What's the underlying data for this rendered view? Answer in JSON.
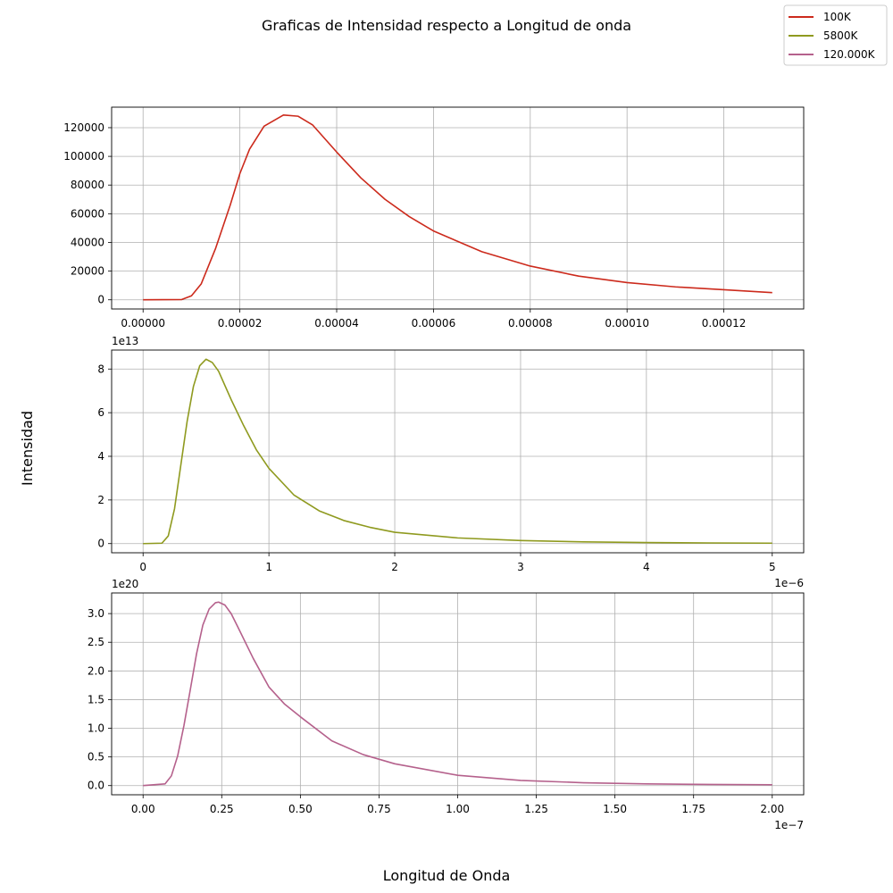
{
  "figure": {
    "title": "Graficas de Intensidad respecto a Longitud de onda",
    "xlabel": "Longitud de Onda",
    "ylabel": "Intensidad"
  },
  "legend": {
    "placement": "top-right",
    "entries": [
      {
        "label": "100K",
        "color": "#cc2a1c"
      },
      {
        "label": "5800K",
        "color": "#8f9a1f"
      },
      {
        "label": "120.000K",
        "color": "#b5618c"
      }
    ]
  },
  "chart_data": [
    {
      "type": "line",
      "series_name": "100K",
      "color": "#cc2a1c",
      "grid": true,
      "xlim": [
        -6.5e-06,
        0.0001365
      ],
      "ylim": [
        -6400,
        134300
      ],
      "xticks": [
        0,
        2e-05,
        4e-05,
        6e-05,
        8e-05,
        0.0001,
        0.00012
      ],
      "xtick_labels": [
        "0.00000",
        "0.00002",
        "0.00004",
        "0.00006",
        "0.00008",
        "0.00010",
        "0.00012"
      ],
      "yticks": [
        0,
        20000,
        40000,
        60000,
        80000,
        100000,
        120000
      ],
      "ytick_labels": [
        "0",
        "20000",
        "40000",
        "60000",
        "80000",
        "100000",
        "120000"
      ],
      "offset_x": "",
      "offset_y": "",
      "x": [
        0,
        8e-06,
        1e-05,
        1.2e-05,
        1.5e-05,
        1.8e-05,
        2e-05,
        2.2e-05,
        2.5e-05,
        2.9e-05,
        3.2e-05,
        3.5e-05,
        4e-05,
        4.5e-05,
        5e-05,
        5.5e-05,
        6e-05,
        7e-05,
        8e-05,
        9e-05,
        0.0001,
        0.00011,
        0.00012,
        0.00013
      ],
      "y": [
        0,
        200,
        2800,
        11000,
        36000,
        66000,
        88000,
        105000,
        121000,
        128800,
        128000,
        122000,
        103000,
        85000,
        70000,
        58000,
        48000,
        33500,
        23500,
        16500,
        12000,
        9000,
        7000,
        5000
      ]
    },
    {
      "type": "line",
      "series_name": "5800K",
      "color": "#8f9a1f",
      "grid": true,
      "xlim": [
        -2.5e-07,
        5.25e-06
      ],
      "ylim": [
        -4200000000000.0,
        88700000000000.0
      ],
      "xticks": [
        0,
        1e-06,
        2e-06,
        3e-06,
        4e-06,
        5e-06
      ],
      "xtick_labels": [
        "0",
        "1",
        "2",
        "3",
        "4",
        "5"
      ],
      "yticks": [
        0,
        20000000000000.0,
        40000000000000.0,
        60000000000000.0,
        80000000000000.0
      ],
      "ytick_labels": [
        "0",
        "2",
        "4",
        "6",
        "8"
      ],
      "offset_x": "1e−6",
      "offset_y": "1e13",
      "x": [
        0,
        1.5e-07,
        2e-07,
        2.5e-07,
        3e-07,
        3.5e-07,
        4e-07,
        4.5e-07,
        5e-07,
        5.5e-07,
        6e-07,
        7e-07,
        8e-07,
        9e-07,
        1e-06,
        1.2e-06,
        1.4e-06,
        1.6e-06,
        1.8e-06,
        2e-06,
        2.5e-06,
        3e-06,
        3.5e-06,
        4e-06,
        4.5e-06,
        5e-06
      ],
      "y": [
        0,
        200000000000.0,
        3500000000000.0,
        16000000000000.0,
        36000000000000.0,
        56000000000000.0,
        72000000000000.0,
        81500000000000.0,
        84500000000000.0,
        83000000000000.0,
        79000000000000.0,
        66000000000000.0,
        54000000000000.0,
        43000000000000.0,
        34500000000000.0,
        22200000000000.0,
        15000000000000.0,
        10500000000000.0,
        7500000000000.0,
        5200000000000.0,
        2600000000000.0,
        1400000000000.0,
        800000000000.0,
        500000000000.0,
        300000000000.0,
        200000000000.0
      ]
    },
    {
      "type": "line",
      "series_name": "120.000K",
      "color": "#b5618c",
      "grid": true,
      "xlim": [
        -1e-08,
        2.1e-07
      ],
      "ylim": [
        -1.6e+19,
        3.36e+20
      ],
      "xticks": [
        0,
        2.5e-08,
        5e-08,
        7.5e-08,
        1e-07,
        1.25e-07,
        1.5e-07,
        1.75e-07,
        2e-07
      ],
      "xtick_labels": [
        "0.00",
        "0.25",
        "0.50",
        "0.75",
        "1.00",
        "1.25",
        "1.50",
        "1.75",
        "2.00"
      ],
      "yticks": [
        0,
        5e+19,
        1e+20,
        1.5e+20,
        2e+20,
        2.5e+20,
        3e+20
      ],
      "ytick_labels": [
        "0.0",
        "0.5",
        "1.0",
        "1.5",
        "2.0",
        "2.5",
        "3.0"
      ],
      "offset_x": "1e−7",
      "offset_y": "1e20",
      "x": [
        0,
        7e-09,
        9e-09,
        1.1e-08,
        1.3e-08,
        1.5e-08,
        1.7e-08,
        1.9e-08,
        2.1e-08,
        2.3e-08,
        2.4e-08,
        2.6e-08,
        2.8e-08,
        3e-08,
        3.5e-08,
        4e-08,
        4.5e-08,
        5e-08,
        6e-08,
        7e-08,
        8e-08,
        1e-07,
        1.2e-07,
        1.4e-07,
        1.6e-07,
        1.8e-07,
        2e-07
      ],
      "y": [
        0,
        3e+18,
        1.7e+19,
        5.2e+19,
        1.05e+20,
        1.67e+20,
        2.3e+20,
        2.8e+20,
        3.08e+20,
        3.19e+20,
        3.2e+20,
        3.15e+20,
        3e+20,
        2.78e+20,
        2.22e+20,
        1.72e+20,
        1.42e+20,
        1.2e+20,
        7.8e+19,
        5.4e+19,
        3.8e+19,
        1.8e+19,
        9e+18,
        5e+18,
        3e+18,
        2e+18,
        1.5e+18
      ]
    }
  ]
}
